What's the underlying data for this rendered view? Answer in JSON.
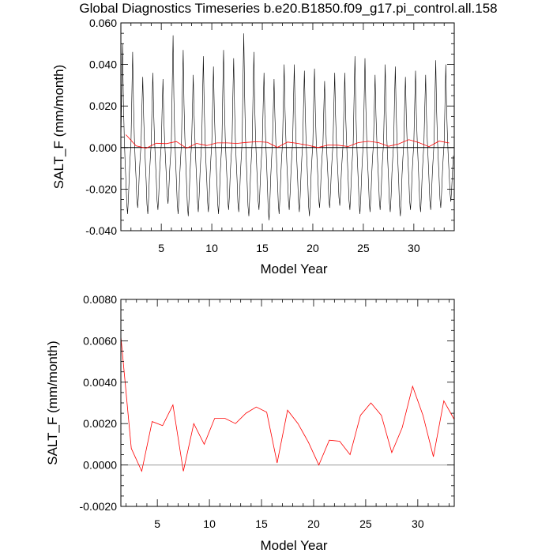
{
  "title": "Global Diagnostics Timeseries b.e20.B1850.f09_g17.pi_control.all.158",
  "colors": {
    "monthly": "#000000",
    "annual": "#ff0000",
    "zero_line": "#000000",
    "zero_line_bottom": "#999999"
  },
  "chart_data": [
    {
      "type": "line",
      "xlabel": "Model Year",
      "ylabel": "SALT_F (mm/month)",
      "xlim": [
        1,
        34
      ],
      "ylim": [
        -0.04,
        0.06
      ],
      "x_ticks": [
        5,
        10,
        15,
        20,
        25,
        30
      ],
      "y_ticks": [
        -0.04,
        -0.02,
        0.0,
        0.02,
        0.04,
        0.06
      ],
      "y_tick_labels": [
        "-0.040",
        "-0.020",
        "0.000",
        "0.020",
        "0.040",
        "0.060"
      ],
      "zero_line": true,
      "series": [
        {
          "key": "monthly",
          "color": "#000000",
          "annual_peaks": [
            0.05,
            0.046,
            0.034,
            0.036,
            0.033,
            0.054,
            0.047,
            0.035,
            0.044,
            0.039,
            0.047,
            0.043,
            0.055,
            0.046,
            0.036,
            0.033,
            0.04,
            0.04,
            0.037,
            0.038,
            0.032,
            0.036,
            0.036,
            0.044,
            0.043,
            0.035,
            0.04,
            0.039,
            0.034,
            0.037,
            0.035,
            0.042,
            0.04
          ],
          "annual_troughs": [
            -0.032,
            -0.029,
            -0.032,
            -0.03,
            -0.027,
            -0.032,
            -0.033,
            -0.031,
            -0.031,
            -0.032,
            -0.03,
            -0.031,
            -0.033,
            -0.03,
            -0.035,
            -0.032,
            -0.03,
            -0.031,
            -0.033,
            -0.029,
            -0.029,
            -0.028,
            -0.03,
            -0.032,
            -0.031,
            -0.03,
            -0.031,
            -0.033,
            -0.03,
            -0.031,
            -0.03,
            -0.029,
            -0.026
          ]
        },
        {
          "key": "annual",
          "color": "#ff0000",
          "x": [
            1.5,
            2.5,
            3.5,
            4.5,
            5.5,
            6.5,
            7.5,
            8.5,
            9.5,
            10.5,
            11.5,
            12.5,
            13.5,
            14.5,
            15.5,
            16.5,
            17.5,
            18.5,
            19.5,
            20.5,
            21.5,
            22.5,
            23.5,
            24.5,
            25.5,
            26.5,
            27.5,
            28.5,
            29.5,
            30.5,
            31.5,
            32.5,
            33.5
          ],
          "y": [
            0.0062,
            0.0008,
            -0.0003,
            0.0021,
            0.0019,
            0.0029,
            -0.0003,
            0.002,
            0.001,
            0.00225,
            0.00225,
            0.002,
            0.0025,
            0.0028,
            0.00255,
            0.0001,
            0.00265,
            0.002,
            0.0011,
            0.0,
            0.0012,
            0.00115,
            0.0005,
            0.0024,
            0.003,
            0.0024,
            0.0006,
            0.0018,
            0.0038,
            0.0024,
            0.0004,
            0.0031,
            0.0022
          ]
        }
      ]
    },
    {
      "type": "line",
      "xlabel": "Model Year",
      "ylabel": "SALT_F (mm/month)",
      "xlim": [
        1.5,
        33.5
      ],
      "ylim": [
        -0.002,
        0.008
      ],
      "x_ticks": [
        5,
        10,
        15,
        20,
        25,
        30
      ],
      "y_ticks": [
        -0.002,
        0.0,
        0.002,
        0.004,
        0.006,
        0.008
      ],
      "y_tick_labels": [
        "-0.0020",
        "0.0000",
        "0.0020",
        "0.0040",
        "0.0060",
        "0.0080"
      ],
      "zero_line": true,
      "series": [
        {
          "key": "annual",
          "color": "#ff0000",
          "x": [
            1.5,
            2.5,
            3.5,
            4.5,
            5.5,
            6.5,
            7.5,
            8.5,
            9.5,
            10.5,
            11.5,
            12.5,
            13.5,
            14.5,
            15.5,
            16.5,
            17.5,
            18.5,
            19.5,
            20.5,
            21.5,
            22.5,
            23.5,
            24.5,
            25.5,
            26.5,
            27.5,
            28.5,
            29.5,
            30.5,
            31.5,
            32.5,
            33.5
          ],
          "y": [
            0.0062,
            0.0008,
            -0.0003,
            0.0021,
            0.0019,
            0.0029,
            -0.0003,
            0.002,
            0.001,
            0.00225,
            0.00225,
            0.002,
            0.0025,
            0.0028,
            0.00255,
            0.0001,
            0.00265,
            0.002,
            0.0011,
            0.0,
            0.0012,
            0.00115,
            0.0005,
            0.0024,
            0.003,
            0.0024,
            0.0006,
            0.0018,
            0.0038,
            0.0024,
            0.0004,
            0.0031,
            0.0022
          ]
        }
      ]
    }
  ]
}
